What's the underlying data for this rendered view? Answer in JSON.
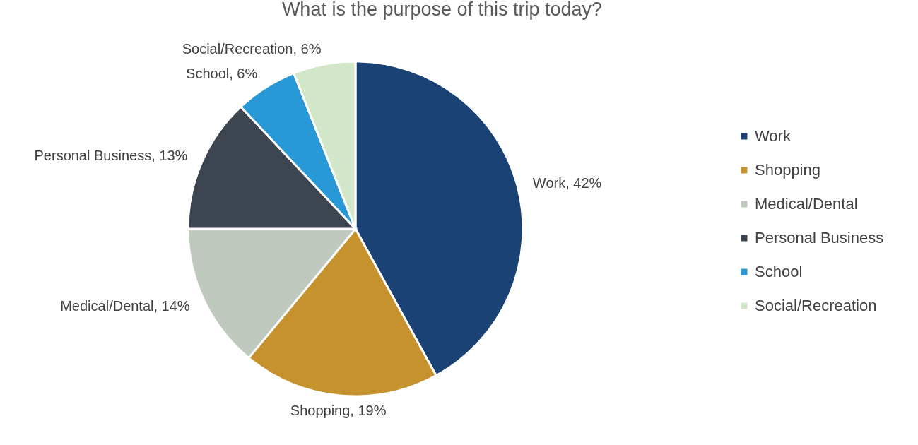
{
  "chart_data": {
    "type": "pie",
    "title": "What is the purpose of this trip today?",
    "categories": [
      "Work",
      "Shopping",
      "Medical/Dental",
      "Personal Business",
      "School",
      "Social/Recreation"
    ],
    "values": [
      42,
      19,
      14,
      13,
      6,
      6
    ],
    "colors": [
      "#1a4275",
      "#c5922d",
      "#bfc9bd",
      "#3c4550",
      "#2898d6",
      "#d2e6c8"
    ],
    "value_labels": [
      "Work, 42%",
      "Shopping, 19%",
      "Medical/Dental, 14%",
      "Personal Business, 13%",
      "School, 6%",
      "Social/Recreation, 6%"
    ],
    "legend": "right"
  }
}
